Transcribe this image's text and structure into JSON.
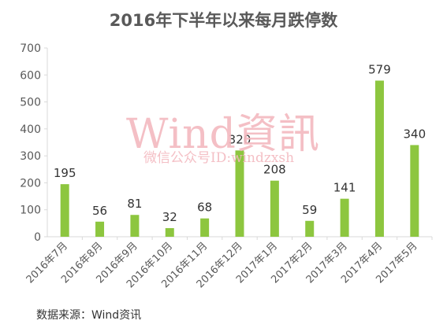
{
  "colors": {
    "bar": "#8dc63f",
    "axis": "#d9d9d9",
    "text": "#595959"
  },
  "watermark": {
    "main": "Wind資訊",
    "sub": "微信公众号ID:windzxsh"
  },
  "source": "数据来源：Wind资讯",
  "chart_data": {
    "type": "bar",
    "title": "2016年下半年以来每月跌停数",
    "xlabel": "",
    "ylabel": "",
    "ylim": [
      0,
      700
    ],
    "yticks": [
      0,
      100,
      200,
      300,
      400,
      500,
      600,
      700
    ],
    "categories": [
      "2016年7月",
      "2016年8月",
      "2016年9月",
      "2016年10月",
      "2016年11月",
      "2016年12月",
      "2017年1月",
      "2017年2月",
      "2017年3月",
      "2017年4月",
      "2017年5月"
    ],
    "values": [
      195,
      56,
      81,
      32,
      68,
      320,
      208,
      59,
      141,
      579,
      340
    ],
    "data_labels": true,
    "grid": false,
    "legend": "none"
  }
}
